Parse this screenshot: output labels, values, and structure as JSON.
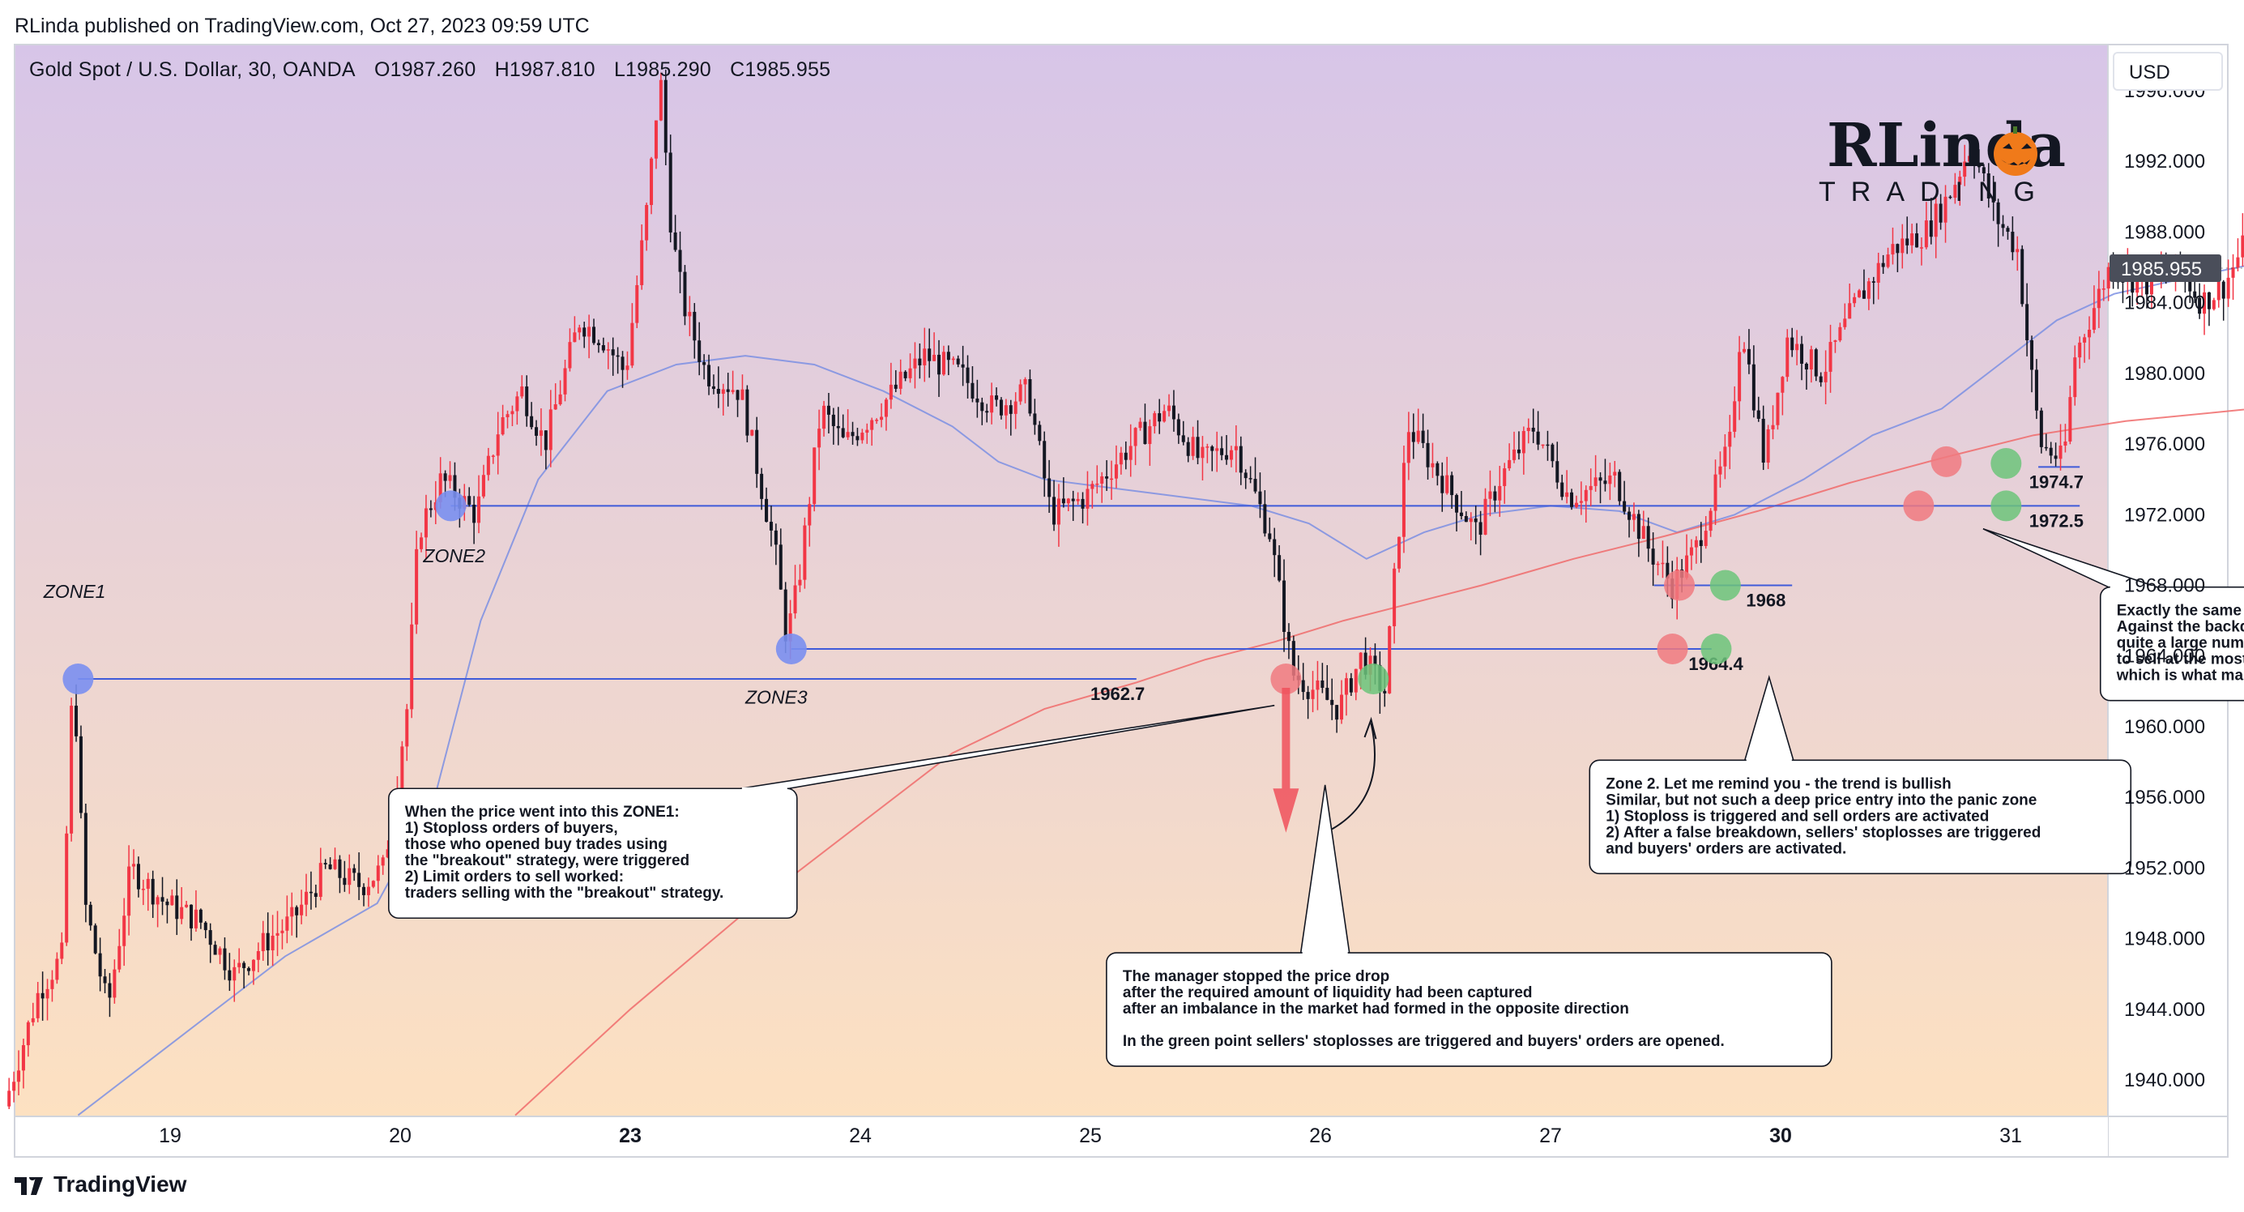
{
  "header": {
    "published": "RLinda published on TradingView.com, Oct 27, 2023 09:59 UTC",
    "symbol": "Gold Spot / U.S. Dollar, 30, OANDA",
    "open": "O1987.260",
    "high": "H1987.810",
    "low": "L1985.290",
    "close": "C1985.955"
  },
  "currency_button": "USD",
  "footer": {
    "brand": "TradingView"
  },
  "logo": {
    "line1": "RLinda",
    "line2": "TRADING"
  },
  "colors": {
    "bg_top": "#d7c5e8",
    "bg_bottom": "#fde1c1",
    "candle_up": "#f23645",
    "candle_down": "#131722",
    "ma_fast": "#7b8fe3",
    "ma_slow": "#f06b6b",
    "level_line": "#3f5bd9",
    "dot_blue": "#7a8ff0",
    "dot_red": "#f07a80",
    "dot_green": "#6cc47a",
    "price_tag": "#4a4e5a"
  },
  "chart_data": {
    "type": "candlestick",
    "title": "Gold Spot / U.S. Dollar, 30, OANDA",
    "timeframe": "30",
    "ylim": [
      1938,
      2000
    ],
    "y_ticks": [
      "1940.000",
      "1944.000",
      "1948.000",
      "1952.000",
      "1956.000",
      "1960.000",
      "1964.000",
      "1968.000",
      "1972.000",
      "1976.000",
      "1980.000",
      "1984.000",
      "1988.000",
      "1992.000",
      "1996.000"
    ],
    "x_ticks": [
      {
        "label": "19",
        "day": 18.5,
        "bold": false
      },
      {
        "label": "20",
        "day": 19.5,
        "bold": false
      },
      {
        "label": "23",
        "day": 20.5,
        "bold": true
      },
      {
        "label": "24",
        "day": 21.5,
        "bold": false
      },
      {
        "label": "25",
        "day": 22.5,
        "bold": false
      },
      {
        "label": "26",
        "day": 23.5,
        "bold": false
      },
      {
        "label": "27",
        "day": 24.5,
        "bold": false
      },
      {
        "label": "30",
        "day": 25.5,
        "bold": true
      },
      {
        "label": "31",
        "day": 26.5,
        "bold": false
      }
    ],
    "last_price": "1985.955",
    "price_path": [
      [
        17.8,
        1938.5
      ],
      [
        17.95,
        1945
      ],
      [
        18.05,
        1947
      ],
      [
        18.1,
        1963.5
      ],
      [
        18.15,
        1950
      ],
      [
        18.25,
        1944
      ],
      [
        18.35,
        1952
      ],
      [
        18.5,
        1950
      ],
      [
        18.65,
        1949
      ],
      [
        18.8,
        1946
      ],
      [
        18.95,
        1948
      ],
      [
        19.05,
        1949
      ],
      [
        19.2,
        1952
      ],
      [
        19.35,
        1951
      ],
      [
        19.45,
        1952
      ],
      [
        19.55,
        1961
      ],
      [
        19.6,
        1971
      ],
      [
        19.7,
        1974
      ],
      [
        19.85,
        1972
      ],
      [
        19.95,
        1977
      ],
      [
        20.05,
        1979
      ],
      [
        20.15,
        1976
      ],
      [
        20.3,
        1983
      ],
      [
        20.4,
        1982
      ],
      [
        20.5,
        1980
      ],
      [
        20.6,
        1990
      ],
      [
        20.65,
        1997
      ],
      [
        20.7,
        1988
      ],
      [
        20.75,
        1984
      ],
      [
        20.85,
        1980
      ],
      [
        21.0,
        1979
      ],
      [
        21.15,
        1970
      ],
      [
        21.2,
        1965
      ],
      [
        21.25,
        1968
      ],
      [
        21.35,
        1978
      ],
      [
        21.45,
        1976
      ],
      [
        21.6,
        1978
      ],
      [
        21.8,
        1981
      ],
      [
        21.95,
        1980
      ],
      [
        22.1,
        1978
      ],
      [
        22.25,
        1979
      ],
      [
        22.35,
        1972
      ],
      [
        22.5,
        1973
      ],
      [
        22.7,
        1976
      ],
      [
        22.85,
        1978
      ],
      [
        23.0,
        1975
      ],
      [
        23.15,
        1976
      ],
      [
        23.3,
        1971
      ],
      [
        23.4,
        1963
      ],
      [
        23.5,
        1962
      ],
      [
        23.6,
        1961
      ],
      [
        23.7,
        1964
      ],
      [
        23.8,
        1962
      ],
      [
        23.9,
        1977
      ],
      [
        24.0,
        1975
      ],
      [
        24.2,
        1971
      ],
      [
        24.3,
        1974
      ],
      [
        24.45,
        1977
      ],
      [
        24.6,
        1973
      ],
      [
        24.8,
        1974
      ],
      [
        24.95,
        1970
      ],
      [
        25.05,
        1968
      ],
      [
        25.15,
        1970
      ],
      [
        25.3,
        1976
      ],
      [
        25.35,
        1983
      ],
      [
        25.45,
        1975
      ],
      [
        25.55,
        1982
      ],
      [
        25.7,
        1980
      ],
      [
        25.85,
        1984
      ],
      [
        26.0,
        1987
      ],
      [
        26.15,
        1988
      ],
      [
        26.25,
        1990
      ],
      [
        26.35,
        1993
      ],
      [
        26.45,
        1989
      ],
      [
        26.55,
        1987
      ],
      [
        26.6,
        1981
      ],
      [
        26.65,
        1976
      ],
      [
        26.75,
        1975
      ],
      [
        26.8,
        1981
      ],
      [
        26.95,
        1986
      ],
      [
        27.1,
        1985
      ],
      [
        27.25,
        1986
      ],
      [
        27.35,
        1984
      ],
      [
        27.45,
        1985
      ],
      [
        27.6,
        1989
      ],
      [
        27.75,
        1988
      ],
      [
        27.85,
        1987
      ],
      [
        27.95,
        1986
      ]
    ],
    "ma_fast": [
      [
        18.1,
        1938
      ],
      [
        18.5,
        1942
      ],
      [
        19.0,
        1947
      ],
      [
        19.4,
        1950
      ],
      [
        19.65,
        1956
      ],
      [
        19.85,
        1966
      ],
      [
        20.1,
        1974
      ],
      [
        20.4,
        1979
      ],
      [
        20.7,
        1980.5
      ],
      [
        21.0,
        1981
      ],
      [
        21.3,
        1980.5
      ],
      [
        21.6,
        1979
      ],
      [
        21.9,
        1977
      ],
      [
        22.1,
        1975
      ],
      [
        22.3,
        1974
      ],
      [
        22.6,
        1973.5
      ],
      [
        22.9,
        1973
      ],
      [
        23.2,
        1972.5
      ],
      [
        23.45,
        1971.5
      ],
      [
        23.7,
        1969.5
      ],
      [
        23.95,
        1971
      ],
      [
        24.2,
        1972
      ],
      [
        24.5,
        1972.5
      ],
      [
        24.8,
        1972.2
      ],
      [
        25.05,
        1971
      ],
      [
        25.3,
        1972
      ],
      [
        25.6,
        1974
      ],
      [
        25.9,
        1976.5
      ],
      [
        26.2,
        1978
      ],
      [
        26.45,
        1980.5
      ],
      [
        26.7,
        1983
      ],
      [
        26.95,
        1984.5
      ],
      [
        27.3,
        1985.5
      ],
      [
        27.6,
        1986.3
      ],
      [
        27.95,
        1986.5
      ]
    ],
    "ma_slow": [
      [
        20.0,
        1938
      ],
      [
        20.5,
        1944
      ],
      [
        21.0,
        1949.5
      ],
      [
        21.5,
        1954.5
      ],
      [
        21.9,
        1958.5
      ],
      [
        22.3,
        1961
      ],
      [
        22.7,
        1962.5
      ],
      [
        23.0,
        1963.8
      ],
      [
        23.3,
        1964.8
      ],
      [
        23.6,
        1966
      ],
      [
        23.9,
        1967
      ],
      [
        24.2,
        1968
      ],
      [
        24.6,
        1969.5
      ],
      [
        25.0,
        1970.8
      ],
      [
        25.4,
        1972.2
      ],
      [
        25.8,
        1973.8
      ],
      [
        26.2,
        1975.2
      ],
      [
        26.6,
        1976.5
      ],
      [
        27.0,
        1977.3
      ],
      [
        27.4,
        1977.8
      ],
      [
        27.7,
        1978.2
      ],
      [
        27.95,
        1978.7
      ]
    ],
    "levels": [
      {
        "price": 1962.7,
        "from": 18.1,
        "to": 22.7,
        "label": "1962.7",
        "label_day": 22.5
      },
      {
        "price": 1964.4,
        "from": 21.2,
        "to": 25.2,
        "label": "1964.4",
        "label_day": 25.1
      },
      {
        "price": 1968.0,
        "from": 24.95,
        "to": 25.55,
        "label": "1968",
        "label_day": 25.35
      },
      {
        "price": 1972.5,
        "from": 19.72,
        "to": 26.8,
        "label": "1972.5",
        "label_day": 26.58
      },
      {
        "price": 1974.7,
        "from": 26.62,
        "to": 26.8,
        "label": "1974.7",
        "label_day": 26.58
      }
    ],
    "zones": [
      {
        "label": "ZONE1",
        "day": 18.1,
        "price": 1962.7,
        "label_day": 17.95,
        "label_price": 1967.3
      },
      {
        "label": "ZONE2",
        "day": 19.72,
        "price": 1972.5,
        "label_day": 19.6,
        "label_price": 1969.3
      },
      {
        "label": "ZONE3",
        "day": 21.2,
        "price": 1964.4,
        "label_day": 21.0,
        "label_price": 1961.3
      }
    ],
    "signal_dots": [
      {
        "color": "red",
        "day": 23.35,
        "price": 1962.7
      },
      {
        "color": "green",
        "day": 23.73,
        "price": 1962.7
      },
      {
        "color": "red",
        "day": 25.06,
        "price": 1968.0
      },
      {
        "color": "green",
        "day": 25.26,
        "price": 1968.0
      },
      {
        "color": "red",
        "day": 25.03,
        "price": 1964.4
      },
      {
        "color": "green",
        "day": 25.22,
        "price": 1964.4
      },
      {
        "color": "red",
        "day": 26.22,
        "price": 1975.0
      },
      {
        "color": "green",
        "day": 26.48,
        "price": 1974.9
      },
      {
        "color": "red",
        "day": 26.1,
        "price": 1972.5
      },
      {
        "color": "green",
        "day": 26.48,
        "price": 1972.5
      }
    ],
    "annotations": [
      {
        "lines": [
          "When the price went into this ZONE1:",
          "1) Stoploss orders of buyers,",
          "those who opened buy trades using",
          "the \"breakout\" strategy, were triggered",
          "2) Limit orders to sell worked:",
          "traders selling with the \"breakout\" strategy."
        ],
        "box_day": 19.45,
        "box_price": 1956.5,
        "pointer_day": 23.3,
        "pointer_price": 1961.2
      },
      {
        "lines": [
          "The manager stopped the price drop",
          "after the required amount of liquidity had been captured",
          "after an imbalance in the market had formed in the opposite direction",
          "",
          "In the green point sellers' stoplosses are triggered and buyers' orders are opened."
        ],
        "box_day": 22.57,
        "box_price": 1947.2,
        "pointer_day": 23.52,
        "pointer_price": 1956.7
      },
      {
        "lines": [
          "Zone 2. Let me remind you - the trend is bullish",
          "Similar, but not such a deep price entry into the panic zone",
          "1) Stoploss is triggered and sell orders are activated",
          "2) After a false breakdown, sellers' stoplosses are triggered",
          "and buyers' orders are activated."
        ],
        "box_day": 24.67,
        "box_price": 1958.1,
        "pointer_day": 25.45,
        "pointer_price": 1962.8
      },
      {
        "lines": [
          "Exactly the same situation",
          "Against the backdrop of a strong uptrend,",
          "quite a large number of people are looking for attempts",
          "to sell at the most favorable price,",
          "which is what market managers take advantage of"
        ],
        "box_day": 26.89,
        "box_price": 1967.9,
        "pointer_day": 26.38,
        "pointer_price": 1971.2
      }
    ]
  }
}
